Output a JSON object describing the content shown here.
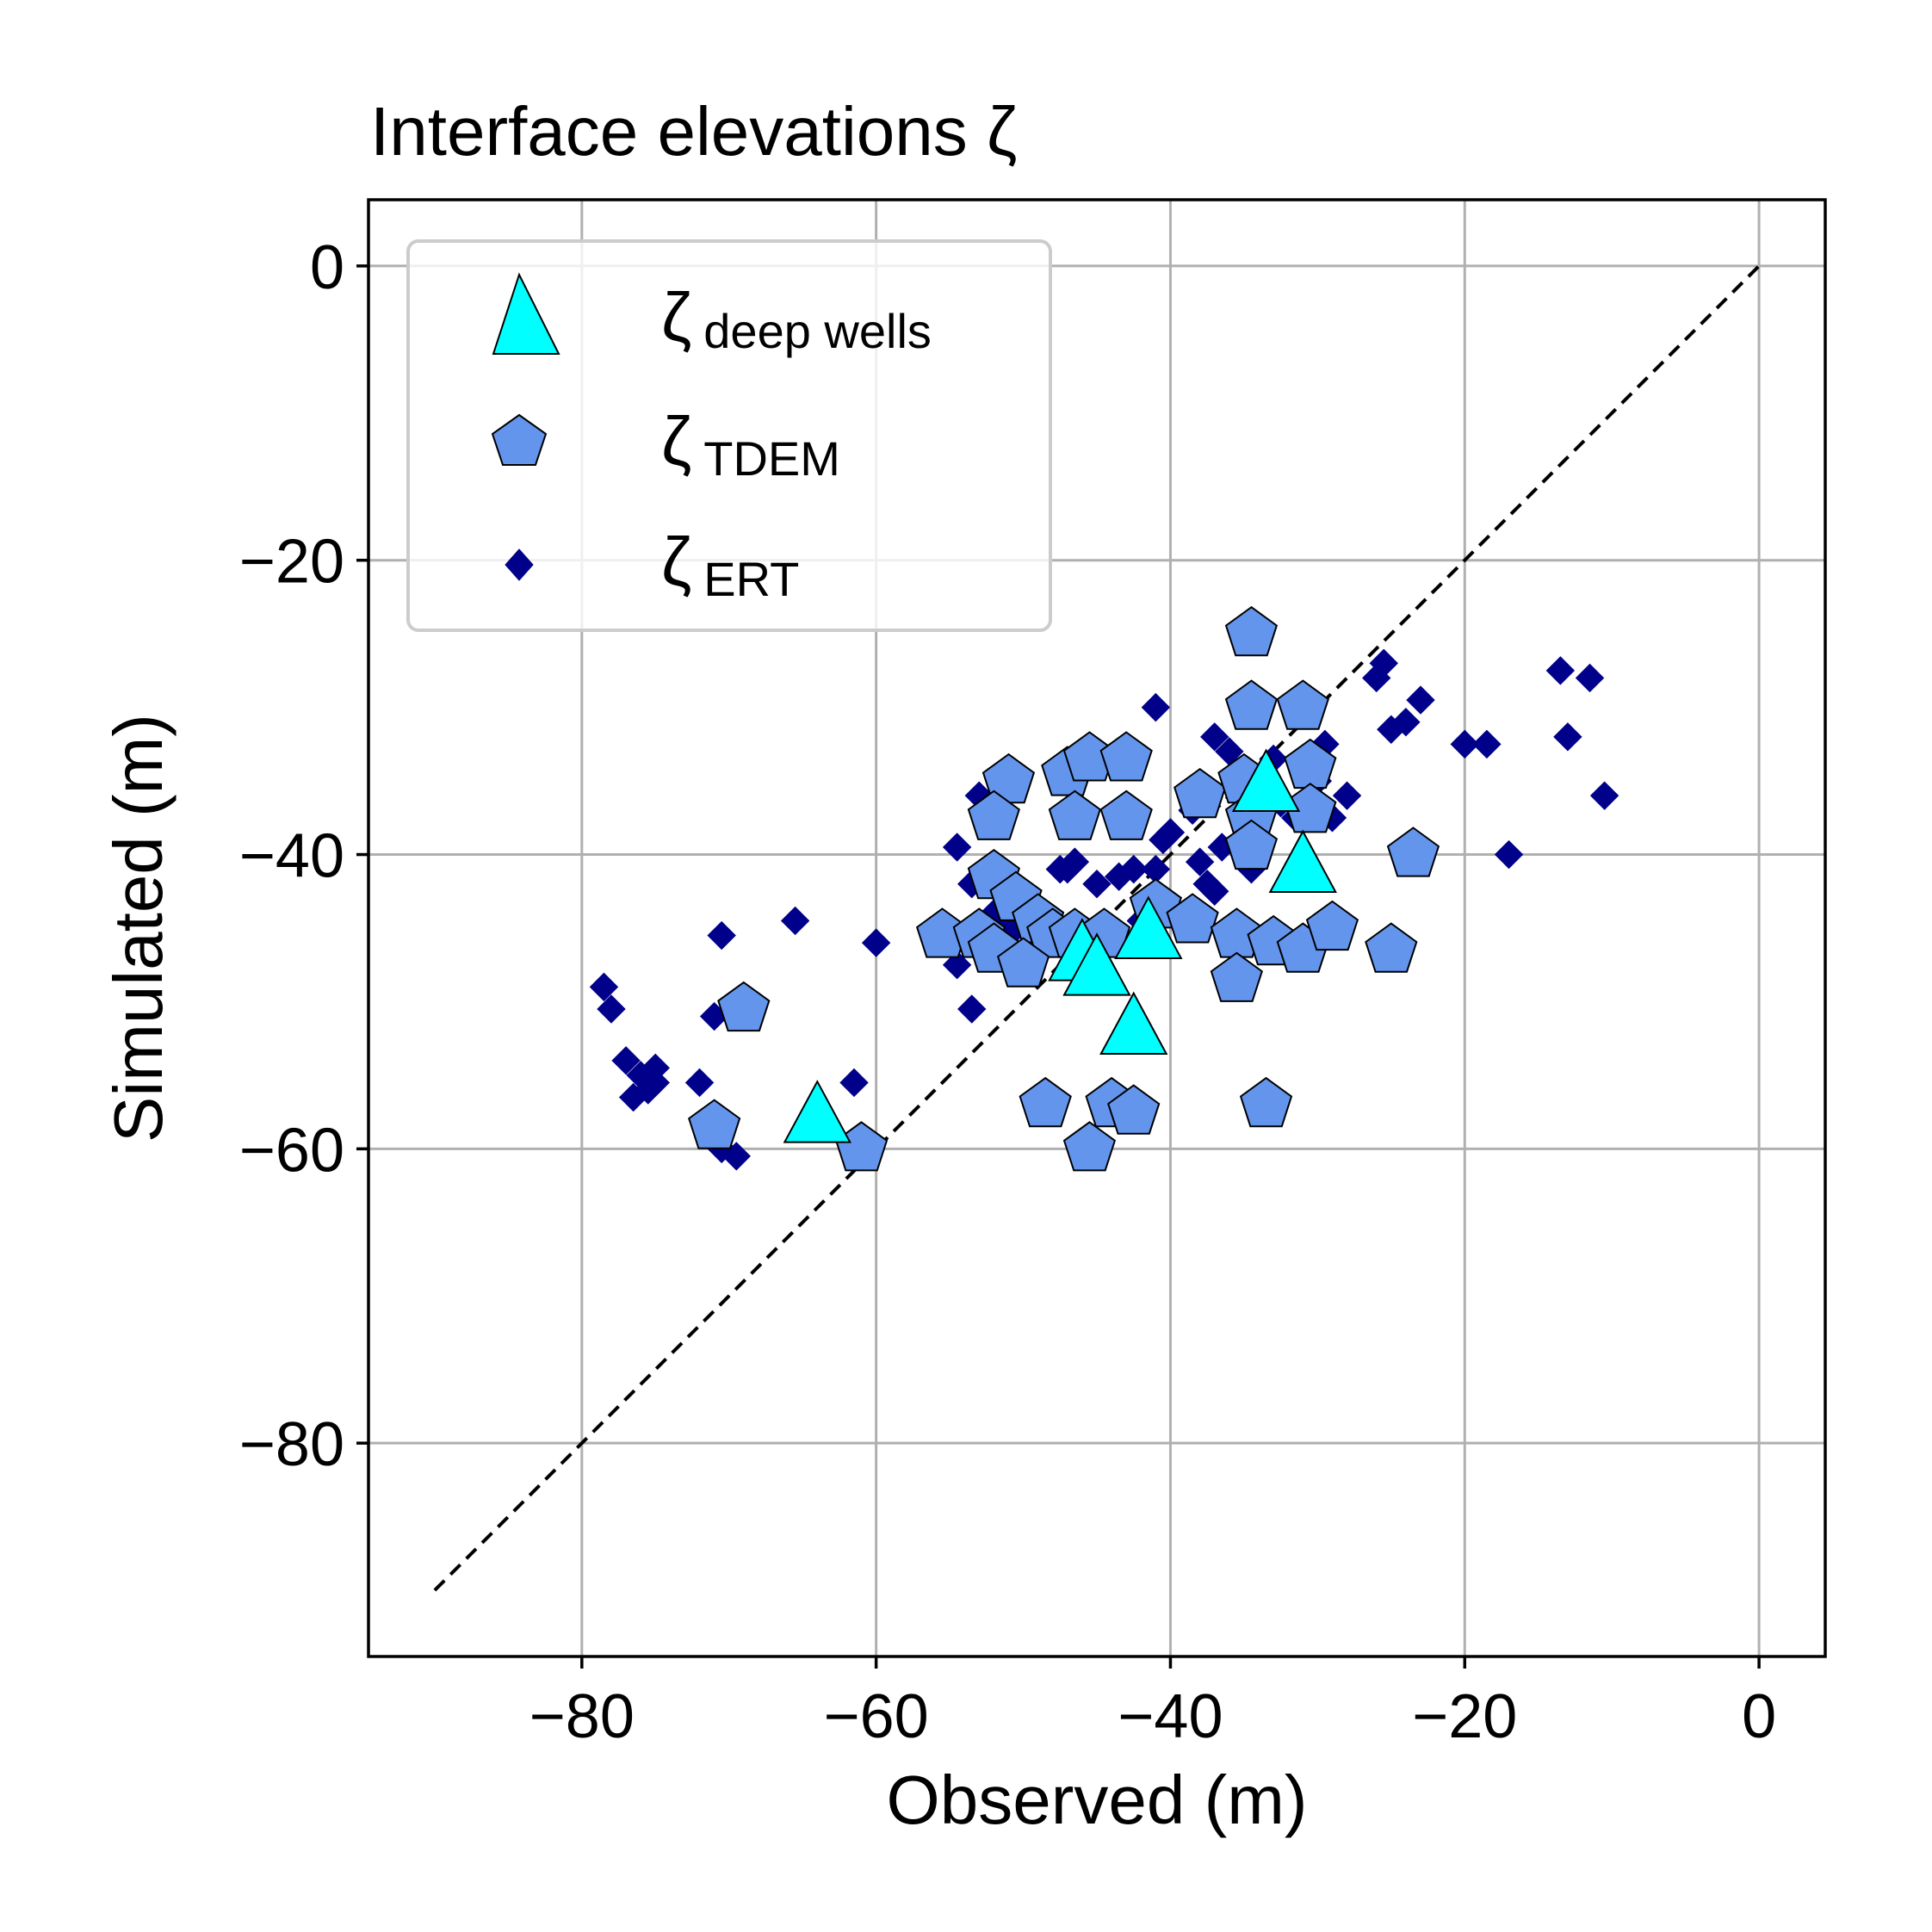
{
  "chart_data": {
    "type": "scatter",
    "title": "Interface elevations ζ",
    "xlabel": "Observed (m)",
    "ylabel": "Simulated (m)",
    "xlim": [
      -94.5,
      4.5
    ],
    "ylim": [
      -94.5,
      4.5
    ],
    "xticks": [
      -80,
      -60,
      -40,
      -20,
      0
    ],
    "yticks": [
      0,
      -20,
      -40,
      -60,
      -80
    ],
    "xtick_labels": [
      "−80",
      "−60",
      "−40",
      "−20",
      "0"
    ],
    "ytick_labels": [
      "0",
      "−20",
      "−40",
      "−60",
      "−80"
    ],
    "grid": true,
    "legend_position": "top-left",
    "reference_line": {
      "x": [
        -90,
        0
      ],
      "y": [
        -90,
        0
      ],
      "style": "dashed",
      "color": "#000000"
    },
    "series": [
      {
        "name": "ζ",
        "subscript": "deep wells",
        "marker": "triangle",
        "color": "#00ffff",
        "points": [
          [
            -64,
            -58
          ],
          [
            -46,
            -47
          ],
          [
            -45,
            -48
          ],
          [
            -41.5,
            -45.5
          ],
          [
            -42.5,
            -52
          ],
          [
            -33.5,
            -35.5
          ],
          [
            -31,
            -41
          ]
        ]
      },
      {
        "name": "ζ",
        "subscript": "TDEM",
        "marker": "pentagon",
        "color": "#6495ed",
        "points": [
          [
            -34.5,
            -25
          ],
          [
            -34.5,
            -30
          ],
          [
            -31,
            -30
          ],
          [
            -51,
            -35
          ],
          [
            -52,
            -37.5
          ],
          [
            -47,
            -34.5
          ],
          [
            -45.5,
            -33.5
          ],
          [
            -43,
            -33.5
          ],
          [
            -46.5,
            -37.5
          ],
          [
            -43,
            -37.5
          ],
          [
            -38,
            -36
          ],
          [
            -35,
            -35
          ],
          [
            -34.5,
            -37.5
          ],
          [
            -34.5,
            -39.5
          ],
          [
            -30.5,
            -34
          ],
          [
            -30.5,
            -37
          ],
          [
            -52,
            -41.5
          ],
          [
            -50.5,
            -43
          ],
          [
            -49,
            -44.5
          ],
          [
            -48,
            -45.5
          ],
          [
            -55.5,
            -45.5
          ],
          [
            -53,
            -45.5
          ],
          [
            -52,
            -46.5
          ],
          [
            -50,
            -47.5
          ],
          [
            -46.5,
            -45.5
          ],
          [
            -44.5,
            -45.5
          ],
          [
            -41,
            -43.5
          ],
          [
            -38.5,
            -44.5
          ],
          [
            -35.5,
            -45.5
          ],
          [
            -33,
            -46
          ],
          [
            -31,
            -46.5
          ],
          [
            -29,
            -45
          ],
          [
            -23.5,
            -40
          ],
          [
            -25,
            -46.5
          ],
          [
            -35.5,
            -48.5
          ],
          [
            -48.5,
            -57
          ],
          [
            -44,
            -57
          ],
          [
            -42.5,
            -57.5
          ],
          [
            -45.5,
            -60
          ],
          [
            -33.5,
            -57
          ],
          [
            -71,
            -58.5
          ],
          [
            -69,
            -50.5
          ],
          [
            -61,
            -60
          ]
        ]
      },
      {
        "name": "ζ",
        "subscript": "ERT",
        "marker": "diamond",
        "color": "#00008b",
        "points": [
          [
            -78.5,
            -49
          ],
          [
            -78,
            -50.5
          ],
          [
            -77,
            -54
          ],
          [
            -76.5,
            -56.5
          ],
          [
            -76,
            -55
          ],
          [
            -75.5,
            -56
          ],
          [
            -75,
            -54.5
          ],
          [
            -75,
            -55.5
          ],
          [
            -72,
            -55.5
          ],
          [
            -70.5,
            -45.5
          ],
          [
            -71,
            -51
          ],
          [
            -70.5,
            -60
          ],
          [
            -69.5,
            -60.5
          ],
          [
            -65.5,
            -44.5
          ],
          [
            -61.5,
            -55.5
          ],
          [
            -60,
            -46
          ],
          [
            -55.5,
            -45.5
          ],
          [
            -54.5,
            -47.5
          ],
          [
            -54.5,
            -39.5
          ],
          [
            -53.5,
            -42
          ],
          [
            -53.5,
            -50.5
          ],
          [
            -53,
            -36
          ],
          [
            -52,
            -44
          ],
          [
            -51,
            -44.5
          ],
          [
            -50.5,
            -45
          ],
          [
            -47.5,
            -41
          ],
          [
            -47,
            -41
          ],
          [
            -46.5,
            -40.5
          ],
          [
            -45,
            -42
          ],
          [
            -44,
            -45.5
          ],
          [
            -43.5,
            -41.5
          ],
          [
            -42.5,
            -41
          ],
          [
            -42,
            -44.5
          ],
          [
            -41,
            -41
          ],
          [
            -41,
            -30
          ],
          [
            -40.5,
            -39
          ],
          [
            -40,
            -38.5
          ],
          [
            -38.5,
            -37
          ],
          [
            -38,
            -40.5
          ],
          [
            -37.5,
            -42
          ],
          [
            -37,
            -42.5
          ],
          [
            -36.5,
            -39.5
          ],
          [
            -37,
            -32
          ],
          [
            -36,
            -33
          ],
          [
            -35.5,
            -34.5
          ],
          [
            -34.5,
            -41
          ],
          [
            -34,
            -35.5
          ],
          [
            -33,
            -33.5
          ],
          [
            -32.5,
            -36.5
          ],
          [
            -31.5,
            -37.5
          ],
          [
            -30,
            -35
          ],
          [
            -29.5,
            -32.5
          ],
          [
            -29,
            -37.5
          ],
          [
            -28,
            -36
          ],
          [
            -26,
            -28
          ],
          [
            -25.5,
            -27
          ],
          [
            -25,
            -31.5
          ],
          [
            -24,
            -31
          ],
          [
            -23,
            -29.5
          ],
          [
            -20,
            -32.5
          ],
          [
            -18.5,
            -32.5
          ],
          [
            -17,
            -40
          ],
          [
            -13.5,
            -27.5
          ],
          [
            -13,
            -32
          ],
          [
            -11.5,
            -28
          ],
          [
            -10.5,
            -36
          ]
        ]
      }
    ]
  }
}
